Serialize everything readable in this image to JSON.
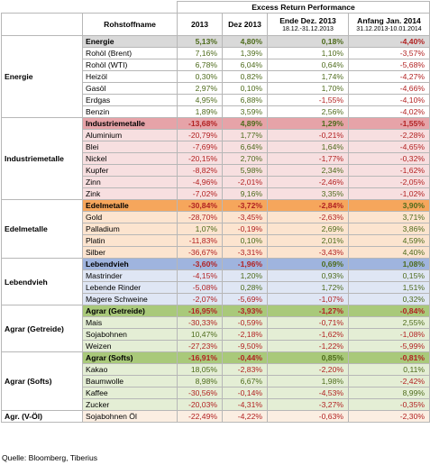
{
  "header": {
    "group": "Excess Return Performance",
    "name_col": "Rohstoffname",
    "col1": "2013",
    "col2": "Dez 2013",
    "col3": "Ende Dez. 2013",
    "col3_sub": "18.12.-31.12.2013",
    "col4": "Anfang Jan. 2014",
    "col4_sub": "31.12.2013-10.01.2014"
  },
  "groups": [
    {
      "category": "Energie",
      "summary": {
        "name": "Energie",
        "v": [
          "5,13%",
          "4,80%",
          "0,18%",
          "-4,40%"
        ],
        "bg": "#d9d9d9"
      },
      "rows_bg": "#ffffff",
      "rows": [
        {
          "name": "Rohöl (Brent)",
          "v": [
            "7,16%",
            "1,39%",
            "1,10%",
            "-3,57%"
          ]
        },
        {
          "name": "Rohöl (WTI)",
          "v": [
            "6,78%",
            "6,04%",
            "0,64%",
            "-5,68%"
          ]
        },
        {
          "name": "Heizöl",
          "v": [
            "0,30%",
            "0,82%",
            "1,74%",
            "-4,27%"
          ]
        },
        {
          "name": "Gasöl",
          "v": [
            "2,97%",
            "0,10%",
            "1,70%",
            "-4,66%"
          ]
        },
        {
          "name": "Erdgas",
          "v": [
            "4,95%",
            "6,88%",
            "-1,55%",
            "-4,10%"
          ]
        },
        {
          "name": "Benzin",
          "v": [
            "1,89%",
            "3,59%",
            "2,56%",
            "-4,02%"
          ]
        }
      ]
    },
    {
      "category": "Industriemetalle",
      "summary": {
        "name": "Industriemetalle",
        "v": [
          "-13,68%",
          "4,89%",
          "1,29%",
          "-1,55%"
        ],
        "bg": "#e6a3a8"
      },
      "rows_bg": "#f7dfe0",
      "rows": [
        {
          "name": "Aluminium",
          "v": [
            "-20,79%",
            "1,77%",
            "-0,21%",
            "-2,28%"
          ]
        },
        {
          "name": "Blei",
          "v": [
            "-7,69%",
            "6,64%",
            "1,64%",
            "-4,65%"
          ]
        },
        {
          "name": "Nickel",
          "v": [
            "-20,15%",
            "2,70%",
            "-1,77%",
            "-0,32%"
          ]
        },
        {
          "name": "Kupfer",
          "v": [
            "-8,82%",
            "5,98%",
            "2,34%",
            "-1,62%"
          ]
        },
        {
          "name": "Zinn",
          "v": [
            "-4,96%",
            "-2,01%",
            "-2,46%",
            "-2,05%"
          ]
        },
        {
          "name": "Zink",
          "v": [
            "-7,02%",
            "9,16%",
            "3,35%",
            "-1,02%"
          ]
        }
      ]
    },
    {
      "category": "Edelmetalle",
      "summary": {
        "name": "Edelmetalle",
        "v": [
          "-30,84%",
          "-3,72%",
          "-2,84%",
          "3,90%"
        ],
        "bg": "#f6a65c"
      },
      "rows_bg": "#fce4cf",
      "rows": [
        {
          "name": "Gold",
          "v": [
            "-28,70%",
            "-3,45%",
            "-2,63%",
            "3,71%"
          ]
        },
        {
          "name": "Palladium",
          "v": [
            "1,07%",
            "-0,19%",
            "2,69%",
            "3,86%"
          ]
        },
        {
          "name": "Platin",
          "v": [
            "-11,83%",
            "0,10%",
            "2,01%",
            "4,59%"
          ]
        },
        {
          "name": "Silber",
          "v": [
            "-36,67%",
            "-3,31%",
            "-3,43%",
            "4,40%"
          ]
        }
      ]
    },
    {
      "category": "Lebendvieh",
      "summary": {
        "name": "Lebendvieh",
        "v": [
          "-3,60%",
          "-1,96%",
          "0,69%",
          "1,08%"
        ],
        "bg": "#9fb4de"
      },
      "rows_bg": "#dfe6f4",
      "rows": [
        {
          "name": "Mastrinder",
          "v": [
            "-4,15%",
            "1,20%",
            "0,93%",
            "0,15%"
          ]
        },
        {
          "name": "Lebende Rinder",
          "v": [
            "-5,08%",
            "0,28%",
            "1,72%",
            "1,51%"
          ]
        },
        {
          "name": "Magere Schweine",
          "v": [
            "-2,07%",
            "-5,69%",
            "-1,07%",
            "0,32%"
          ]
        }
      ]
    },
    {
      "category": "Agrar (Getreide)",
      "summary": {
        "name": "Agrar (Getreide)",
        "v": [
          "-16,95%",
          "-3,93%",
          "-1,27%",
          "-0,84%"
        ],
        "bg": "#a9c97a"
      },
      "rows_bg": "#e4eed5",
      "rows": [
        {
          "name": "Mais",
          "v": [
            "-30,33%",
            "-0,59%",
            "-0,71%",
            "2,55%"
          ]
        },
        {
          "name": "Sojabohnen",
          "v": [
            "10,47%",
            "-2,18%",
            "-1,62%",
            "-1,08%"
          ]
        },
        {
          "name": "Weizen",
          "v": [
            "-27,23%",
            "-9,50%",
            "-1,22%",
            "-5,99%"
          ]
        }
      ]
    },
    {
      "category": "Agrar (Softs)",
      "summary": {
        "name": "Agrar (Softs)",
        "v": [
          "-16,91%",
          "-0,44%",
          "0,85%",
          "-0,81%"
        ],
        "bg": "#a9c97a"
      },
      "rows_bg": "#e4eed5",
      "rows": [
        {
          "name": "Kakao",
          "v": [
            "18,05%",
            "-2,83%",
            "-2,20%",
            "0,11%"
          ]
        },
        {
          "name": "Baumwolle",
          "v": [
            "8,98%",
            "6,67%",
            "1,98%",
            "-2,42%"
          ]
        },
        {
          "name": "Kaffee",
          "v": [
            "-30,56%",
            "-0,14%",
            "-4,53%",
            "8,99%"
          ]
        },
        {
          "name": "Zucker",
          "v": [
            "-20,03%",
            "-4,31%",
            "-3,27%",
            "-0,35%"
          ]
        }
      ]
    },
    {
      "category": "Agr. (V-Öl)",
      "summary": null,
      "rows_bg": "#fbeee2",
      "rows": [
        {
          "name": "Sojabohnen Öl",
          "v": [
            "-22,49%",
            "-4,22%",
            "-0,63%",
            "-2,30%"
          ]
        }
      ]
    }
  ],
  "source": "Quelle: Bloomberg, Tiberius",
  "colors": {
    "positive": "#4e6b1c",
    "negative": "#b22222"
  }
}
